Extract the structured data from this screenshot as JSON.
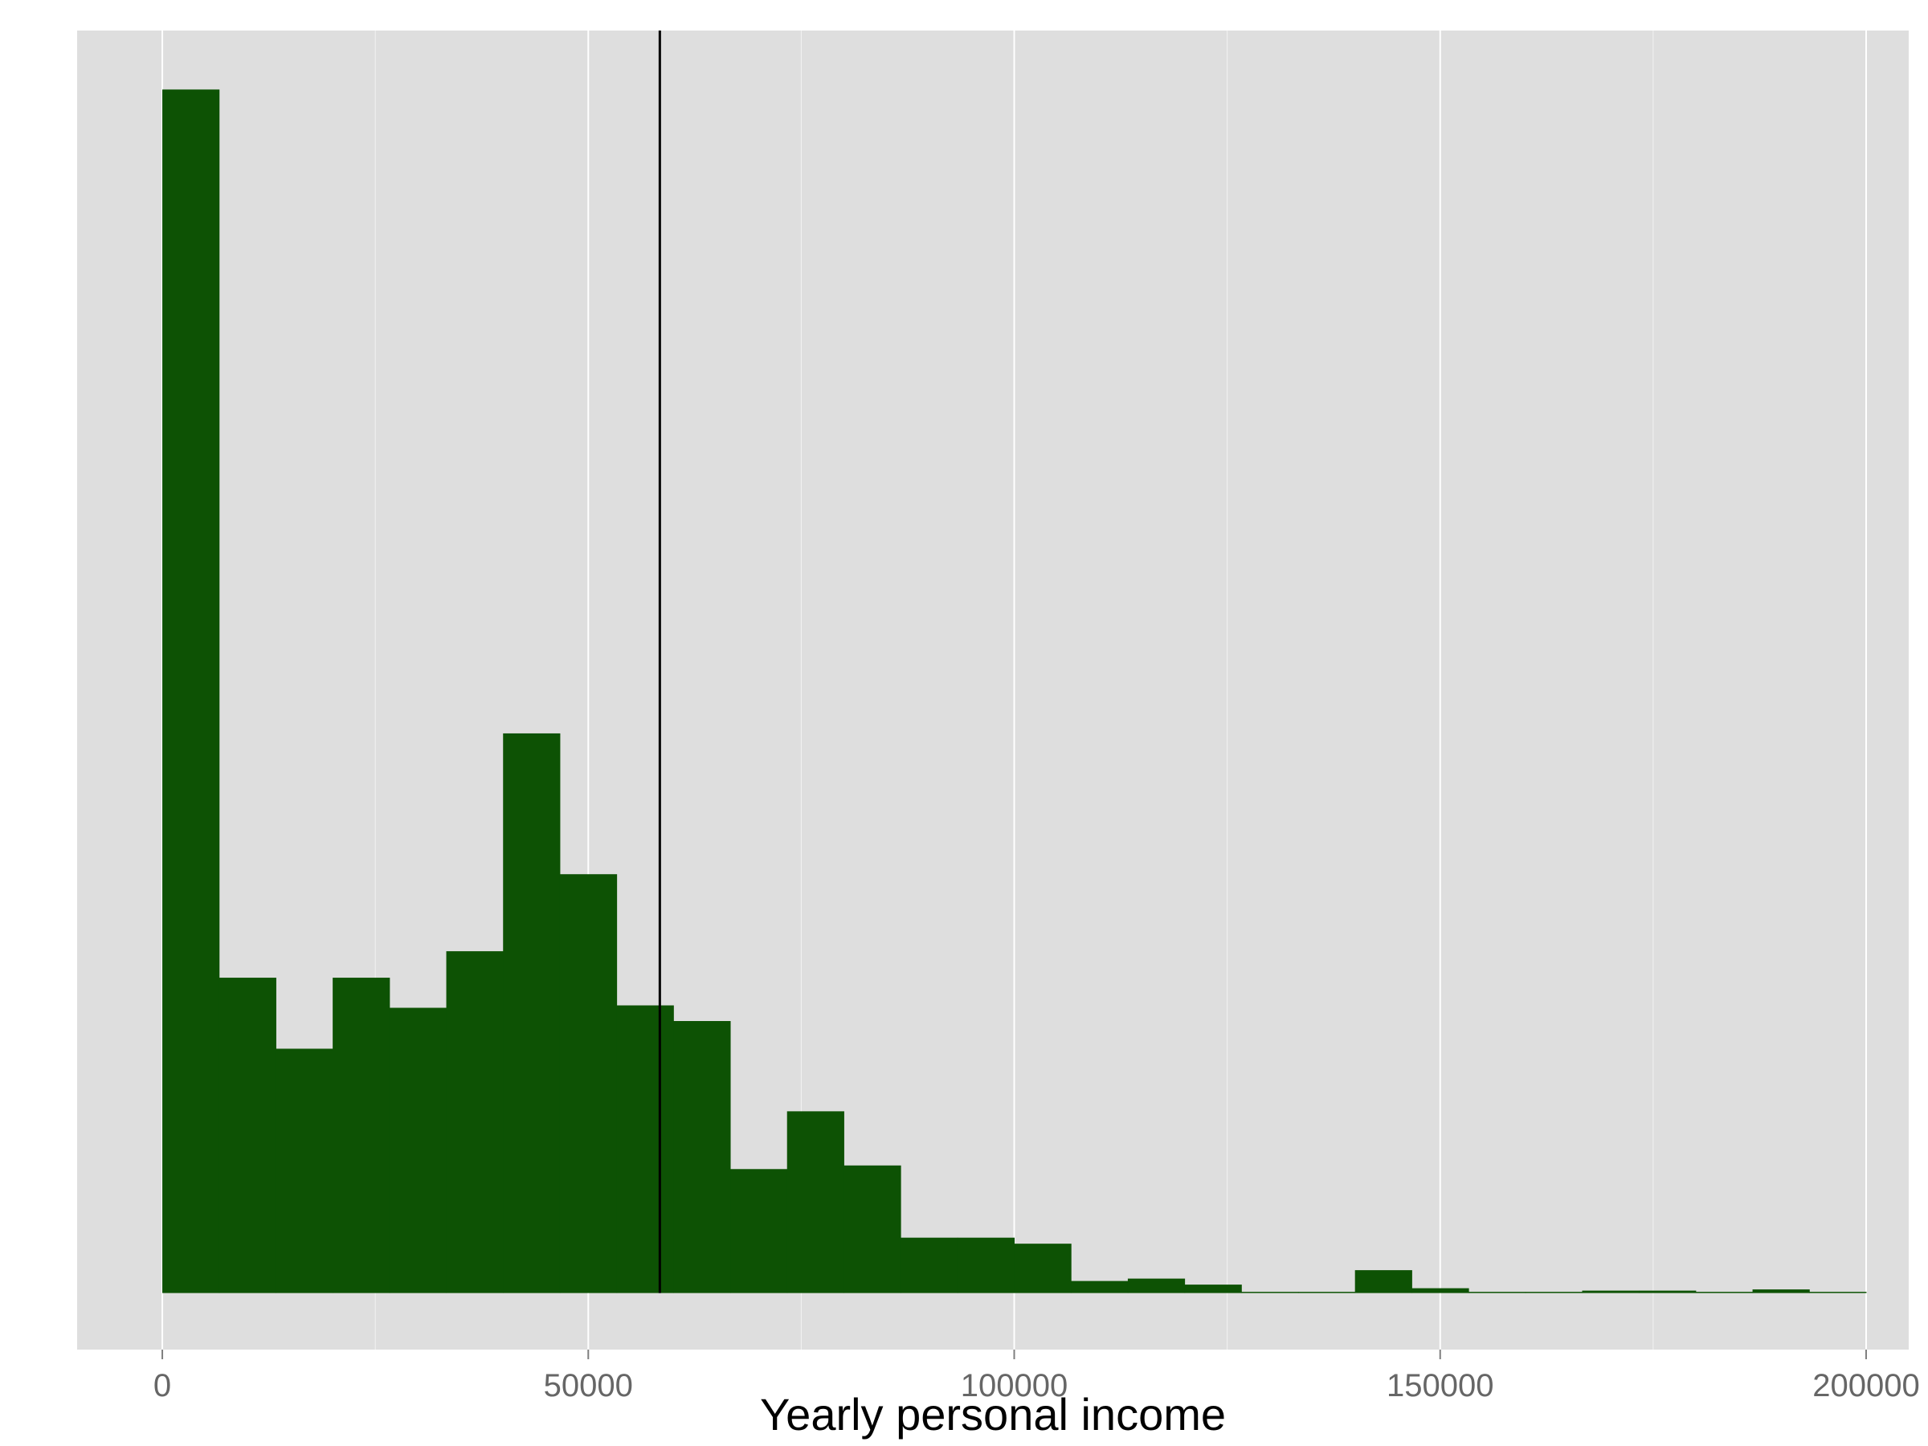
{
  "chart_data": {
    "type": "bar",
    "title": "",
    "xlabel": "Yearly personal income",
    "ylabel": "",
    "bin_width": 6667,
    "x": [
      3333,
      10000,
      16667,
      23333,
      30000,
      36667,
      43333,
      50000,
      56667,
      63333,
      70000,
      76667,
      83333,
      90000,
      96667,
      103333,
      110000,
      116667,
      123333,
      130000,
      136667,
      143333,
      150000,
      156667,
      163333,
      170000,
      176667,
      183333,
      190000,
      196667
    ],
    "values": [
      100,
      26.2,
      20.3,
      26.2,
      23.7,
      28.4,
      46.5,
      34.8,
      23.9,
      22.6,
      10.3,
      15.1,
      10.6,
      4.6,
      4.6,
      4.1,
      1.0,
      1.2,
      0.7,
      0.1,
      0.1,
      1.9,
      0.4,
      0.1,
      0.1,
      0.2,
      0.2,
      0.1,
      0.3,
      0.1
    ],
    "bar_color": "#0d5204",
    "reference_line": {
      "x": 58400,
      "color": "#000000"
    },
    "xlim": [
      -10000,
      205000
    ],
    "ylim": [
      -4.7,
      104.9
    ],
    "x_ticks": [
      0,
      50000,
      100000,
      150000,
      200000
    ],
    "x_tick_labels": [
      "0",
      "50000",
      "100000",
      "150000",
      "200000"
    ],
    "y_axis_labels_shown": false,
    "grid": true,
    "panel_background": "#dedede",
    "grid_color": "#ffffff",
    "legend": "none"
  }
}
